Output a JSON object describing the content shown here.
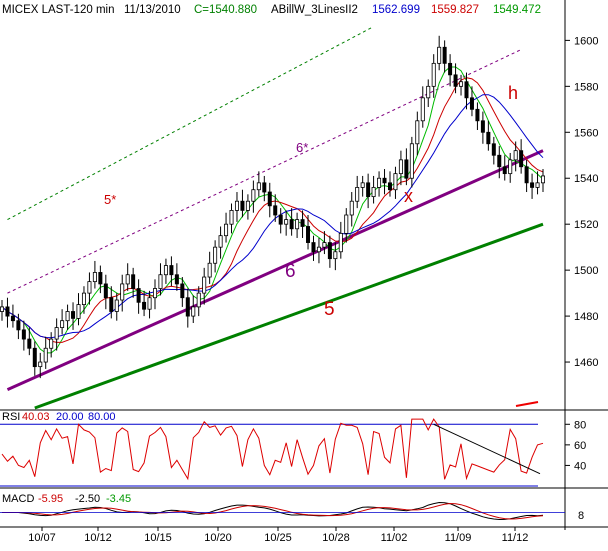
{
  "header": {
    "symbol": "MICEX LAST-120 min",
    "date": "11/13/2010",
    "close": "C=1540.880",
    "indicator": "ABillW_3LinesII2",
    "v1": "1562.699",
    "v2": "1559.827",
    "v3": "1549.472"
  },
  "colors": {
    "background": "#ffffff",
    "candle": "#000000",
    "ma_fast": "#00bb00",
    "ma_mid": "#cc0000",
    "ma_slow": "#0000cc",
    "trend_6": "#800080",
    "trend_5": "#008000",
    "rsi_line": "#dd0000",
    "macd_line": "#000000"
  },
  "chart_data": {
    "type": "candlestick",
    "y_ticks": [
      1460,
      1480,
      1500,
      1520,
      1540,
      1560,
      1580,
      1600
    ],
    "ylim": [
      1440,
      1608
    ],
    "x_ticks": [
      "10/07",
      "10/12",
      "10/15",
      "10/20",
      "10/25",
      "10/28",
      "11/02",
      "11/09",
      "11/12"
    ],
    "close": [
      1484,
      1480,
      1478,
      1474,
      1470,
      1466,
      1458,
      1460,
      1466,
      1470,
      1475,
      1478,
      1482,
      1479,
      1485,
      1490,
      1495,
      1499,
      1494,
      1488,
      1482,
      1487,
      1494,
      1498,
      1492,
      1486,
      1483,
      1488,
      1492,
      1498,
      1502,
      1498,
      1494,
      1488,
      1480,
      1484,
      1490,
      1497,
      1503,
      1510,
      1515,
      1520,
      1526,
      1530,
      1526,
      1530,
      1535,
      1538,
      1534,
      1528,
      1524,
      1520,
      1522,
      1518,
      1522,
      1519,
      1512,
      1508,
      1510,
      1512,
      1505,
      1508,
      1516,
      1524,
      1530,
      1536,
      1538,
      1532,
      1536,
      1540,
      1538,
      1535,
      1542,
      1548,
      1540,
      1555,
      1565,
      1575,
      1580,
      1590,
      1597,
      1590,
      1585,
      1580,
      1582,
      1575,
      1570,
      1565,
      1560,
      1555,
      1550,
      1545,
      1542,
      1548,
      1552,
      1545,
      1538,
      1536,
      1538,
      1541
    ],
    "trend_lines": [
      {
        "label": "6",
        "from": {
          "x": 1,
          "y": 1448
        },
        "to": {
          "x": 99,
          "y": 1552
        },
        "color": "#800080"
      },
      {
        "label": "5",
        "from": {
          "x": 6,
          "y": 1440
        },
        "to": {
          "x": 99,
          "y": 1520
        },
        "color": "#008000"
      },
      {
        "label": "6*",
        "from": {
          "x": 1,
          "y": 1490
        },
        "to": {
          "x": 95,
          "y": 1596
        },
        "color": "#800080"
      },
      {
        "label": "5*",
        "from": {
          "x": 1,
          "y": 1522
        },
        "to": {
          "x": 68,
          "y": 1606
        },
        "color": "#008000"
      }
    ],
    "annotations": [
      "6",
      "5",
      "6*",
      "5*",
      "x",
      "h"
    ],
    "rsi": {
      "label": "RSI",
      "values_text": [
        "40.03",
        "20.00",
        "80.00"
      ],
      "y_ticks": [
        40,
        60,
        80
      ],
      "ylim": [
        20,
        90
      ],
      "levels": [
        20,
        80
      ]
    },
    "macd": {
      "label": "MACD",
      "values_text": [
        "-5.95",
        "-2.50",
        "-3.45"
      ],
      "y_ticks": [
        "8"
      ]
    }
  }
}
